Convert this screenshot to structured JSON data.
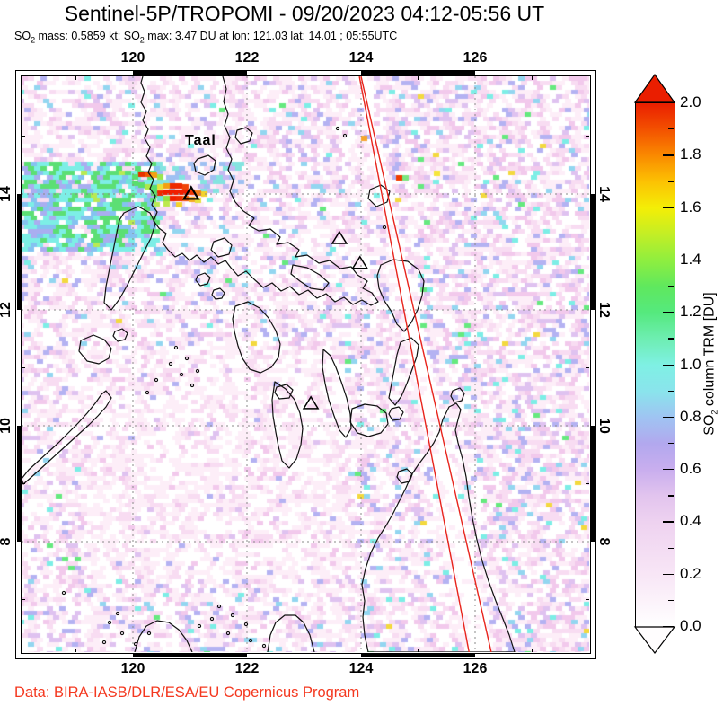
{
  "title": "Sentinel-5P/TROPOMI - 09/20/2023 04:12-05:56 UT",
  "subtitle_parts": [
    {
      "t": "SO"
    },
    {
      "t": "2",
      "sub": true
    },
    {
      "t": " mass: 0.5859 kt; SO"
    },
    {
      "t": "2",
      "sub": true
    },
    {
      "t": " max: 3.47 DU at lon: 121.03 lat: 14.01 ; 05:55UTC"
    }
  ],
  "footer": {
    "credit": "Data: BIRA-IASB/DLR/ESA/EU Copernicus Program",
    "color": "#f4381f"
  },
  "map": {
    "taal_label": "Taal",
    "lon_ticks": [
      {
        "label": "120",
        "value": 120
      },
      {
        "label": "122",
        "value": 122
      },
      {
        "label": "124",
        "value": 124
      },
      {
        "label": "126",
        "value": 126
      }
    ],
    "lat_ticks": [
      {
        "label": "14",
        "value": 14
      },
      {
        "label": "12",
        "value": 12
      },
      {
        "label": "10",
        "value": 10
      },
      {
        "label": "8",
        "value": 8
      }
    ],
    "lon_range": [
      118.05,
      128.0
    ],
    "lat_range": [
      6.06,
      16.03
    ],
    "grid_step_deg": 2,
    "minor_tick_step_deg": 1,
    "neatline_black_lon": [
      [
        120,
        122
      ],
      [
        124,
        126
      ]
    ],
    "neatline_black_lat": [
      [
        12,
        14
      ],
      [
        8,
        10
      ]
    ],
    "grid_color": "#8a8a8a",
    "coast_color": "#111111"
  },
  "volcanoes": [
    {
      "name": "Taal",
      "lon": 121.02,
      "lat": 14.01,
      "emph": true
    },
    {
      "name": "Mayon",
      "lon": 123.62,
      "lat": 13.24,
      "emph": false
    },
    {
      "name": "Bulusan",
      "lon": 123.98,
      "lat": 12.81,
      "emph": false
    },
    {
      "name": "Kanlaon",
      "lon": 123.12,
      "lat": 10.39,
      "emph": false
    }
  ],
  "orbit_edges": {
    "color": "#e8241c",
    "lines": [
      {
        "from": {
          "lon": 123.97,
          "lat": 16.03
        },
        "to": {
          "lon": 125.9,
          "lat": 6.06
        }
      },
      {
        "from": {
          "lon": 124.0,
          "lat": 16.03
        },
        "to": {
          "lon": 126.29,
          "lat": 6.06
        }
      }
    ]
  },
  "colorbar": {
    "label_parts": [
      {
        "t": "SO"
      },
      {
        "t": "2",
        "sub": true
      },
      {
        "t": " column TRM [DU]"
      }
    ],
    "range": [
      0.0,
      2.0
    ],
    "tick_step": 0.2,
    "minor_tick_step": 0.1,
    "ticks": [
      {
        "label": "2.0",
        "value": 2.0
      },
      {
        "label": "1.8",
        "value": 1.8
      },
      {
        "label": "1.6",
        "value": 1.6
      },
      {
        "label": "1.4",
        "value": 1.4
      },
      {
        "label": "1.2",
        "value": 1.2
      },
      {
        "label": "1.0",
        "value": 1.0
      },
      {
        "label": "0.8",
        "value": 0.8
      },
      {
        "label": "0.6",
        "value": 0.6
      },
      {
        "label": "0.4",
        "value": 0.4
      },
      {
        "label": "0.2",
        "value": 0.2
      },
      {
        "label": "0.0",
        "value": 0.0
      }
    ],
    "over_color": "#ea1e00",
    "under_color": "#fffdfe",
    "gradient": [
      {
        "v": 0.0,
        "c": "#ffffff"
      },
      {
        "v": 0.2,
        "c": "#f8e6f6"
      },
      {
        "v": 0.4,
        "c": "#eed2f0"
      },
      {
        "v": 0.5,
        "c": "#e2c4ee"
      },
      {
        "v": 0.6,
        "c": "#c9aeee"
      },
      {
        "v": 0.7,
        "c": "#b2a8ee"
      },
      {
        "v": 0.8,
        "c": "#9fc4f2"
      },
      {
        "v": 0.9,
        "c": "#8ae4ec"
      },
      {
        "v": 1.0,
        "c": "#7ff0e4"
      },
      {
        "v": 1.1,
        "c": "#6eeeb2"
      },
      {
        "v": 1.2,
        "c": "#55e97e"
      },
      {
        "v": 1.3,
        "c": "#5fe85e"
      },
      {
        "v": 1.4,
        "c": "#8fee3f"
      },
      {
        "v": 1.5,
        "c": "#c3ee25"
      },
      {
        "v": 1.6,
        "c": "#f4ee06"
      },
      {
        "v": 1.7,
        "c": "#fcc203"
      },
      {
        "v": 1.8,
        "c": "#fa8a00"
      },
      {
        "v": 1.9,
        "c": "#f35100"
      },
      {
        "v": 2.0,
        "c": "#ea1e00"
      }
    ]
  },
  "texture": {
    "seed": 2023,
    "cell": [
      7,
      5
    ],
    "palette": {
      "white": "#ffffff",
      "pale1": "#fdeef8",
      "pale2": "#f8dcf2",
      "pink": "#f2c9ec",
      "lavender": "#dfc2f0",
      "blue": "#b4b2f2",
      "lightblue": "#93d6f0",
      "cyan": "#7deee6",
      "green": "#66e97f",
      "yellow": "#f3d93e"
    }
  },
  "plume_cells": [
    [
      130,
      106,
      "#e83000"
    ],
    [
      137,
      106,
      "#f25600"
    ],
    [
      144,
      107,
      "#f5a012"
    ],
    [
      123,
      109,
      "#59de6e"
    ],
    [
      151,
      109,
      "#9ce64e"
    ],
    [
      116,
      114,
      "#6fe3d8"
    ],
    [
      123,
      116,
      "#59de6e"
    ],
    [
      130,
      118,
      "#59de6e"
    ],
    [
      137,
      120,
      "#aee74a"
    ],
    [
      144,
      121,
      "#59de6e"
    ],
    [
      151,
      120,
      "#e8e23c"
    ],
    [
      158,
      119,
      "#f5a012"
    ],
    [
      165,
      119,
      "#ee2a00"
    ],
    [
      172,
      119,
      "#ee2a00"
    ],
    [
      179,
      120,
      "#f04408"
    ],
    [
      144,
      127,
      "#59de6e"
    ],
    [
      151,
      127,
      "#ee2a00"
    ],
    [
      158,
      126,
      "#f01e00"
    ],
    [
      165,
      126,
      "#f01e00"
    ],
    [
      172,
      126,
      "#f01e00"
    ],
    [
      179,
      126,
      "#f01e00"
    ],
    [
      186,
      126,
      "#ee3604"
    ],
    [
      193,
      127,
      "#f27c16"
    ],
    [
      200,
      128,
      "#f2d22c"
    ],
    [
      151,
      133,
      "#6fe3d8"
    ],
    [
      158,
      133,
      "#8fe246"
    ],
    [
      165,
      133,
      "#f01e00"
    ],
    [
      172,
      133,
      "#ee2a00"
    ],
    [
      179,
      133,
      "#f05a0a"
    ],
    [
      186,
      134,
      "#f5ab20"
    ],
    [
      193,
      135,
      "#e8e23c"
    ],
    [
      158,
      139,
      "#bce94e"
    ],
    [
      172,
      140,
      "#f2d22c"
    ],
    [
      417,
      110,
      "#f03c00"
    ],
    [
      424,
      110,
      "#7be67f"
    ],
    [
      459,
      105,
      "#f5e63c"
    ],
    [
      378,
      66,
      "#f5a52d"
    ]
  ]
}
